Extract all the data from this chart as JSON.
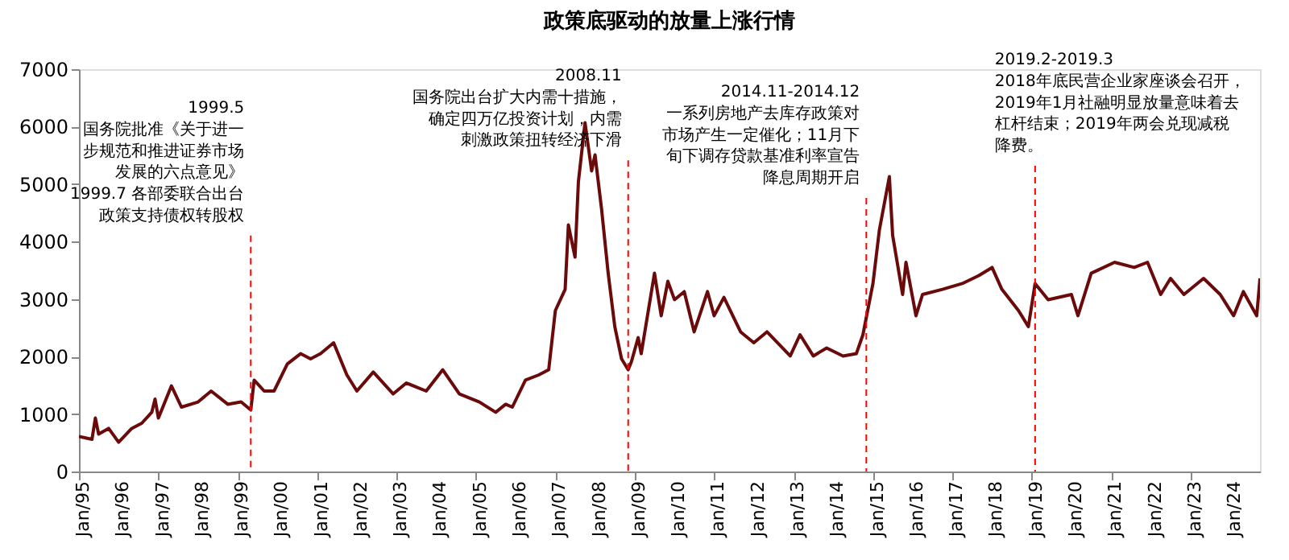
{
  "chart_data": {
    "type": "line",
    "title": "政策底驱动的放量上涨行情",
    "xlim": [
      "1995-01",
      "2024-10"
    ],
    "ylim": [
      0,
      7000
    ],
    "yticks": [
      0,
      1000,
      2000,
      3000,
      4000,
      5000,
      6000,
      7000
    ],
    "xticks": [
      {
        "value": "1995-01",
        "label": "Jan/95"
      },
      {
        "value": "1996-01",
        "label": "Jan/96"
      },
      {
        "value": "1997-01",
        "label": "Jan/97"
      },
      {
        "value": "1998-01",
        "label": "Jan/98"
      },
      {
        "value": "1999-01",
        "label": "Jan/99"
      },
      {
        "value": "2000-01",
        "label": "Jan/00"
      },
      {
        "value": "2001-01",
        "label": "Jan/01"
      },
      {
        "value": "2002-01",
        "label": "Jan/02"
      },
      {
        "value": "2003-01",
        "label": "Jan/03"
      },
      {
        "value": "2004-01",
        "label": "Jan/04"
      },
      {
        "value": "2005-01",
        "label": "Jan/05"
      },
      {
        "value": "2006-01",
        "label": "Jan/06"
      },
      {
        "value": "2007-01",
        "label": "Jan/07"
      },
      {
        "value": "2008-01",
        "label": "Jan/08"
      },
      {
        "value": "2009-01",
        "label": "Jan/09"
      },
      {
        "value": "2010-01",
        "label": "Jan/10"
      },
      {
        "value": "2011-01",
        "label": "Jan/11"
      },
      {
        "value": "2012-01",
        "label": "Jan/12"
      },
      {
        "value": "2013-01",
        "label": "Jan/13"
      },
      {
        "value": "2014-01",
        "label": "Jan/14"
      },
      {
        "value": "2015-01",
        "label": "Jan/15"
      },
      {
        "value": "2016-01",
        "label": "Jan/16"
      },
      {
        "value": "2017-01",
        "label": "Jan/17"
      },
      {
        "value": "2018-01",
        "label": "Jan/18"
      },
      {
        "value": "2019-01",
        "label": "Jan/19"
      },
      {
        "value": "2020-01",
        "label": "Jan/20"
      },
      {
        "value": "2021-01",
        "label": "Jan/21"
      },
      {
        "value": "2022-01",
        "label": "Jan/22"
      },
      {
        "value": "2023-01",
        "label": "Jan/23"
      },
      {
        "value": "2024-01",
        "label": "Jan/24"
      }
    ],
    "x": [
      "1995-01",
      "1995-05",
      "1995-06",
      "1995-07",
      "1995-10",
      "1996-01",
      "1996-05",
      "1996-08",
      "1996-11",
      "1996-12",
      "1997-01",
      "1997-05",
      "1997-08",
      "1998-01",
      "1998-05",
      "1998-10",
      "1999-02",
      "1999-05",
      "1999-06",
      "1999-09",
      "1999-12",
      "2000-04",
      "2000-08",
      "2000-11",
      "2001-02",
      "2001-06",
      "2001-10",
      "2002-01",
      "2002-06",
      "2002-12",
      "2003-04",
      "2003-10",
      "2004-03",
      "2004-08",
      "2005-02",
      "2005-07",
      "2005-10",
      "2005-12",
      "2006-04",
      "2006-08",
      "2006-11",
      "2007-01",
      "2007-04",
      "2007-05",
      "2007-07",
      "2007-08",
      "2007-10",
      "2007-12",
      "2008-01",
      "2008-03",
      "2008-05",
      "2008-07",
      "2008-09",
      "2008-11",
      "2008-12",
      "2009-02",
      "2009-03",
      "2009-07",
      "2009-09",
      "2009-11",
      "2010-01",
      "2010-04",
      "2010-07",
      "2010-11",
      "2011-01",
      "2011-04",
      "2011-09",
      "2012-01",
      "2012-05",
      "2012-12",
      "2013-03",
      "2013-07",
      "2013-11",
      "2014-04",
      "2014-08",
      "2014-10",
      "2015-01",
      "2015-03",
      "2015-06",
      "2015-07",
      "2015-10",
      "2015-11",
      "2016-02",
      "2016-04",
      "2016-10",
      "2017-04",
      "2017-09",
      "2018-01",
      "2018-04",
      "2018-09",
      "2018-12",
      "2019-02",
      "2019-06",
      "2020-01",
      "2020-03",
      "2020-07",
      "2021-02",
      "2021-08",
      "2021-12",
      "2022-04",
      "2022-07",
      "2022-11",
      "2023-05",
      "2023-10",
      "2024-02",
      "2024-05",
      "2024-09",
      "2024-10"
    ],
    "series": [
      {
        "color": "#6b0a0a",
        "values": [
          610,
          560,
          930,
          650,
          750,
          510,
          750,
          840,
          1030,
          1260,
          930,
          1490,
          1120,
          1210,
          1400,
          1170,
          1210,
          1070,
          1590,
          1400,
          1400,
          1870,
          2050,
          1960,
          2050,
          2240,
          1680,
          1400,
          1730,
          1350,
          1540,
          1400,
          1770,
          1350,
          1210,
          1030,
          1170,
          1120,
          1590,
          1680,
          1770,
          2800,
          3170,
          4290,
          3730,
          5040,
          6070,
          5230,
          5510,
          4570,
          3450,
          2520,
          1960,
          1770,
          1910,
          2330,
          2050,
          3450,
          2710,
          3310,
          2990,
          3130,
          2430,
          3130,
          2710,
          3030,
          2430,
          2240,
          2430,
          2010,
          2380,
          2010,
          2150,
          2010,
          2050,
          2380,
          3270,
          4200,
          5130,
          4110,
          3080,
          3640,
          2710,
          3080,
          3170,
          3270,
          3410,
          3550,
          3170,
          2800,
          2520,
          3270,
          2990,
          3080,
          2710,
          3450,
          3640,
          3550,
          3640,
          3080,
          3360,
          3080,
          3360,
          3080,
          2710,
          3130,
          2710,
          3360
        ]
      }
    ],
    "ref_lines": [
      {
        "axis": "x",
        "value": "1999-05",
        "color": "#ff0000",
        "line_style": "dashed",
        "label": "1999.5 国务院批准《关于进一步规范和推进证券市场发展的六点意见》 1999.7 各部委联合出台政策支持债权转股权"
      },
      {
        "axis": "x",
        "value": "2008-11",
        "color": "#ff0000",
        "line_style": "dashed",
        "label": "2008.11 国务院出台扩大内需十措施，确定四万亿投资计划，内需刺激政策扭转经济下滑"
      },
      {
        "axis": "x",
        "value": "2014-11",
        "color": "#ff0000",
        "line_style": "dashed",
        "label": "2014.11-2014.12 一系列房地产去库存政策对市场产生一定催化；11月下旬下调存贷款基准利率宣告降息周期开启"
      },
      {
        "axis": "x",
        "value": "2019-02",
        "color": "#ff0000",
        "line_style": "dashed",
        "label": "2019.2-2019.3 2018年底民营企业家座谈会召开，2019年1月社融明显放量意味着去杠杆结束；2019年两会兑现减税降费。"
      }
    ]
  }
}
